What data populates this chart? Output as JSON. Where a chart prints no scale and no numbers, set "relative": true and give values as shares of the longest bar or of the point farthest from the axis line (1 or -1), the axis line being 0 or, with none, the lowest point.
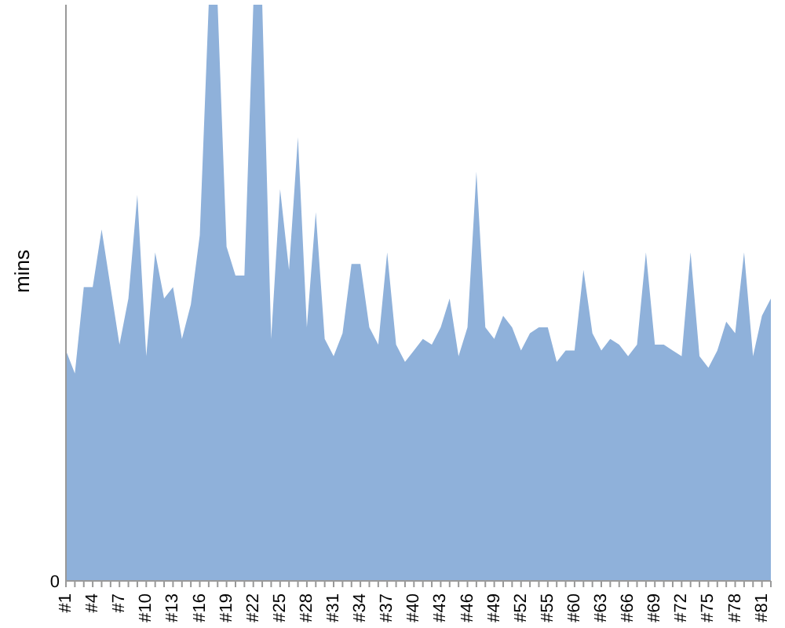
{
  "chart_data": {
    "type": "area",
    "ylabel": "mins",
    "relative": true,
    "annotations": [
      "0"
    ],
    "grid": false,
    "legend": false,
    "categories": [
      "#1",
      null,
      null,
      "#4",
      null,
      null,
      "#7",
      null,
      null,
      "#10",
      null,
      null,
      "#13",
      null,
      null,
      "#16",
      null,
      null,
      "#19",
      null,
      null,
      "#22",
      null,
      null,
      "#25",
      null,
      null,
      "#28",
      null,
      null,
      "#31",
      null,
      null,
      "#34",
      null,
      null,
      "#37",
      null,
      null,
      "#40",
      null,
      null,
      "#43",
      null,
      null,
      "#46",
      null,
      null,
      "#49",
      null,
      null,
      "#52",
      null,
      null,
      "#55",
      null,
      null,
      "#60",
      null,
      null,
      "#63",
      null,
      null,
      "#66",
      null,
      null,
      "#69",
      null,
      null,
      "#72",
      null,
      null,
      "#75",
      null,
      null,
      "#78",
      null,
      null,
      "#81",
      null
    ],
    "series": [
      {
        "color": "#8fb1da",
        "values": [
          0.4,
          0.36,
          0.51,
          0.51,
          0.61,
          0.51,
          0.41,
          0.49,
          0.67,
          0.39,
          0.57,
          0.49,
          0.51,
          0.42,
          0.48,
          0.6,
          1,
          1,
          0.58,
          0.53,
          0.53,
          1,
          1,
          0.42,
          0.68,
          0.54,
          0.77,
          0.44,
          0.64,
          0.42,
          0.39,
          0.43,
          0.55,
          0.55,
          0.44,
          0.41,
          0.57,
          0.41,
          0.38,
          0.4,
          0.42,
          0.41,
          0.44,
          0.49,
          0.39,
          0.44,
          0.71,
          0.44,
          0.42,
          0.46,
          0.44,
          0.4,
          0.43,
          0.44,
          0.44,
          0.38,
          0.4,
          0.4,
          0.54,
          0.43,
          0.4,
          0.42,
          0.41,
          0.39,
          0.41,
          0.57,
          0.41,
          0.41,
          0.4,
          0.39,
          0.57,
          0.39,
          0.37,
          0.4,
          0.45,
          0.43,
          0.57,
          0.39,
          0.46,
          0.49
        ]
      }
    ]
  }
}
